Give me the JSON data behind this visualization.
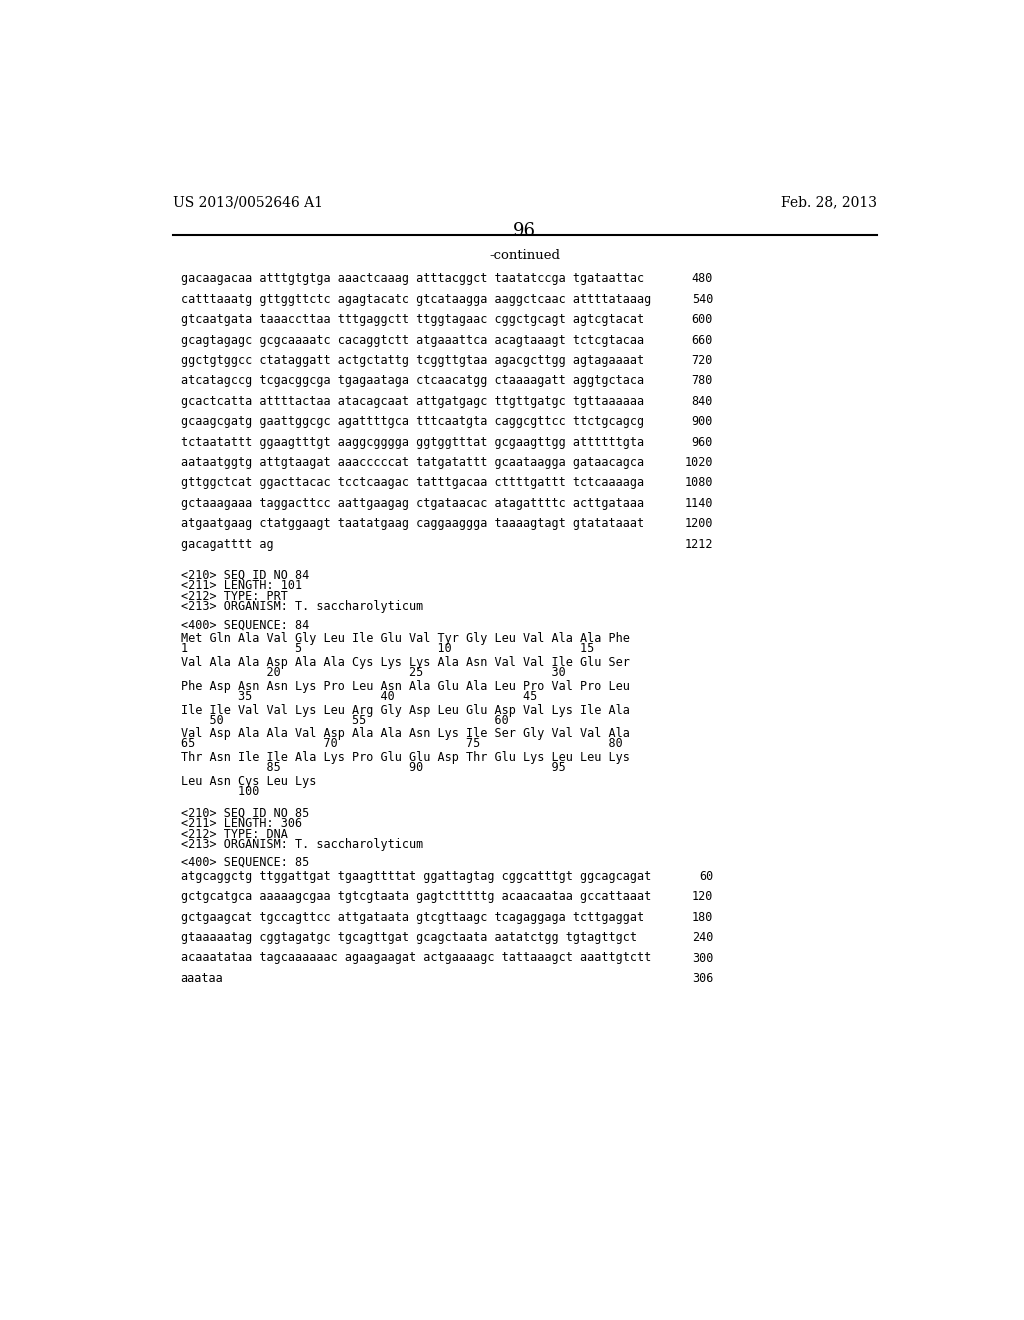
{
  "header_left": "US 2013/0052646 A1",
  "header_right": "Feb. 28, 2013",
  "page_number": "96",
  "continued_label": "-continued",
  "background_color": "#ffffff",
  "text_color": "#000000",
  "sequence_lines": [
    [
      "gacaagacaa atttgtgtga aaactcaaag atttacggct taatatccga tgataattac",
      "480"
    ],
    [
      "catttaaatg gttggttctc agagtacatc gtcataagga aaggctcaac attttataaag",
      "540"
    ],
    [
      "gtcaatgata taaaccttaa tttgaggctt ttggtagaac cggctgcagt agtcgtacat",
      "600"
    ],
    [
      "gcagtagagc gcgcaaaatc cacaggtctt atgaaattca acagtaaagt tctcgtacaa",
      "660"
    ],
    [
      "ggctgtggcc ctataggatt actgctattg tcggttgtaa agacgcttgg agtagaaaat",
      "720"
    ],
    [
      "atcatagccg tcgacggcga tgagaataga ctcaacatgg ctaaaagatt aggtgctaca",
      "780"
    ],
    [
      "gcactcatta attttactaa atacagcaat attgatgagc ttgttgatgc tgttaaaaaa",
      "840"
    ],
    [
      "gcaagcgatg gaattggcgc agattttgca tttcaatgta caggcgttcc ttctgcagcg",
      "900"
    ],
    [
      "tctaatattt ggaagtttgt aaggcgggga ggtggtttat gcgaagttgg attttttgta",
      "960"
    ],
    [
      "aataatggtg attgtaagat aaacccccat tatgatattt gcaataagga gataacagca",
      "1020"
    ],
    [
      "gttggctcat ggacttacac tcctcaagac tatttgacaa cttttgattt tctcaaaaga",
      "1080"
    ],
    [
      "gctaaagaaa taggacttcc aattgaagag ctgataacac atagattttc acttgataaa",
      "1140"
    ],
    [
      "atgaatgaag ctatggaagt taatatgaag caggaaggga taaaagtagt gtatataaat",
      "1200"
    ],
    [
      "gacagatttt ag",
      "1212"
    ]
  ],
  "seq84_header": [
    "<210> SEQ ID NO 84",
    "<211> LENGTH: 101",
    "<212> TYPE: PRT",
    "<213> ORGANISM: T. saccharolyticum"
  ],
  "seq84_sequence_label": "<400> SEQUENCE: 84",
  "seq84_aa_blocks": [
    {
      "seq": "Met Gln Ala Val Gly Leu Ile Glu Val Tyr Gly Leu Val Ala Ala Phe",
      "num": "1               5                   10                  15"
    },
    {
      "seq": "Val Ala Ala Asp Ala Ala Cys Lys Lys Ala Asn Val Val Ile Glu Ser",
      "num": "            20                  25                  30"
    },
    {
      "seq": "Phe Asp Asn Asn Lys Pro Leu Asn Ala Glu Ala Leu Pro Val Pro Leu",
      "num": "        35                  40                  45"
    },
    {
      "seq": "Ile Ile Val Val Lys Leu Arg Gly Asp Leu Glu Asp Val Lys Ile Ala",
      "num": "    50                  55                  60"
    },
    {
      "seq": "Val Asp Ala Ala Val Asp Ala Ala Asn Lys Ile Ser Gly Val Val Ala",
      "num": "65                  70                  75                  80"
    },
    {
      "seq": "Thr Asn Ile Ile Ala Lys Pro Glu Glu Asp Thr Glu Lys Leu Leu Lys",
      "num": "            85                  90                  95"
    },
    {
      "seq": "Leu Asn Cys Leu Lys",
      "num": "        100"
    }
  ],
  "seq85_header": [
    "<210> SEQ ID NO 85",
    "<211> LENGTH: 306",
    "<212> TYPE: DNA",
    "<213> ORGANISM: T. saccharolyticum"
  ],
  "seq85_sequence_label": "<400> SEQUENCE: 85",
  "seq85_dna_lines": [
    [
      "atgcaggctg ttggattgat tgaagttttat ggattagtag cggcatttgt ggcagcagat",
      "60"
    ],
    [
      "gctgcatgca aaaaagcgaa tgtcgtaata gagtctttttg acaacaataa gccattaaat",
      "120"
    ],
    [
      "gctgaagcat tgccagttcc attgataata gtcgttaagc tcagaggaga tcttgaggat",
      "180"
    ],
    [
      "gtaaaaatag cggtagatgc tgcagttgat gcagctaata aatatctgg tgtagttgct",
      "240"
    ],
    [
      "acaaatataa tagcaaaaaac agaagaagat actgaaaagc tattaaagct aaattgtctt",
      "300"
    ],
    [
      "aaataa",
      "306"
    ]
  ]
}
